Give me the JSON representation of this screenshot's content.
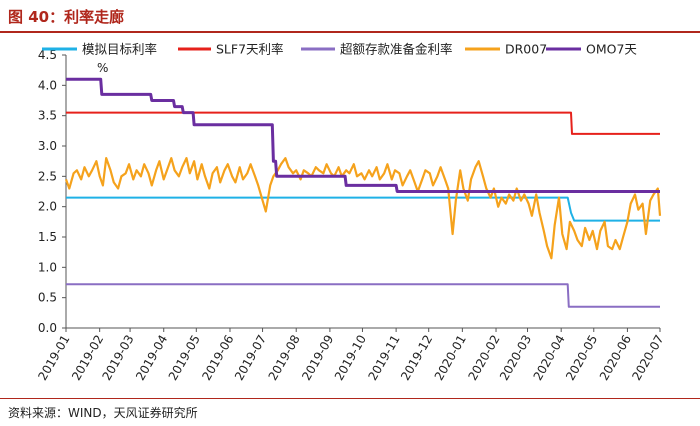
{
  "header": {
    "title": "图 40：利率走廊"
  },
  "footer": {
    "source": "资料来源：WIND，天风证券研究所"
  },
  "colors": {
    "policy_target": "#1fb1e6",
    "slf7": "#e6211b",
    "excess_reserve": "#8a6ec3",
    "dr007": "#f5a21c",
    "omo7": "#6a2ea0",
    "accent": "#b0271c"
  },
  "chart_data": {
    "type": "line",
    "unit_label": "%",
    "ylim": [
      0,
      4.5
    ],
    "yticks": [
      "0.0",
      "0.5",
      "1.0",
      "1.5",
      "2.0",
      "2.5",
      "3.0",
      "3.5",
      "4.0",
      "4.5"
    ],
    "xticks": [
      "2019-01",
      "2019-02",
      "2019-03",
      "2019-04",
      "2019-05",
      "2019-06",
      "2019-07",
      "2019-08",
      "2019-09",
      "2019-10",
      "2019-11",
      "2019-12",
      "2020-01",
      "2020-02",
      "2020-03",
      "2020-04",
      "2020-05",
      "2020-06",
      "2020-07"
    ],
    "xlim": [
      "2019-01-01",
      "2020-07-01"
    ],
    "legend_position": "top",
    "grid": false,
    "series": [
      {
        "name": "模拟目标利率",
        "key": "policy_target",
        "step": true,
        "points": [
          [
            "2019-01-01",
            2.15
          ],
          [
            "2020-04-07",
            2.15
          ],
          [
            "2020-04-10",
            1.9
          ],
          [
            "2020-04-13",
            1.77
          ],
          [
            "2020-07-01",
            1.77
          ]
        ]
      },
      {
        "name": "SLF7天利率",
        "key": "slf7",
        "step": true,
        "points": [
          [
            "2019-01-01",
            3.55
          ],
          [
            "2020-04-10",
            3.55
          ],
          [
            "2020-04-11",
            3.2
          ],
          [
            "2020-07-01",
            3.2
          ]
        ]
      },
      {
        "name": "超额存款准备金利率",
        "key": "excess_reserve",
        "step": true,
        "points": [
          [
            "2019-01-01",
            0.72
          ],
          [
            "2020-04-07",
            0.72
          ],
          [
            "2020-04-08",
            0.35
          ],
          [
            "2020-07-01",
            0.35
          ]
        ]
      },
      {
        "name": "DR007",
        "key": "dr007",
        "step": false,
        "points": [
          [
            "2019-01-01",
            2.45
          ],
          [
            "2019-01-04",
            2.3
          ],
          [
            "2019-01-08",
            2.55
          ],
          [
            "2019-01-11",
            2.6
          ],
          [
            "2019-01-15",
            2.45
          ],
          [
            "2019-01-18",
            2.65
          ],
          [
            "2019-01-22",
            2.5
          ],
          [
            "2019-01-25",
            2.6
          ],
          [
            "2019-01-29",
            2.75
          ],
          [
            "2019-02-01",
            2.5
          ],
          [
            "2019-02-04",
            2.35
          ],
          [
            "2019-02-07",
            2.8
          ],
          [
            "2019-02-11",
            2.6
          ],
          [
            "2019-02-14",
            2.4
          ],
          [
            "2019-02-18",
            2.3
          ],
          [
            "2019-02-21",
            2.5
          ],
          [
            "2019-02-25",
            2.55
          ],
          [
            "2019-02-28",
            2.7
          ],
          [
            "2019-03-04",
            2.45
          ],
          [
            "2019-03-07",
            2.6
          ],
          [
            "2019-03-11",
            2.5
          ],
          [
            "2019-03-14",
            2.7
          ],
          [
            "2019-03-18",
            2.55
          ],
          [
            "2019-03-21",
            2.35
          ],
          [
            "2019-03-25",
            2.6
          ],
          [
            "2019-03-28",
            2.75
          ],
          [
            "2019-04-01",
            2.45
          ],
          [
            "2019-04-04",
            2.6
          ],
          [
            "2019-04-08",
            2.8
          ],
          [
            "2019-04-11",
            2.6
          ],
          [
            "2019-04-15",
            2.5
          ],
          [
            "2019-04-18",
            2.65
          ],
          [
            "2019-04-22",
            2.8
          ],
          [
            "2019-04-25",
            2.55
          ],
          [
            "2019-04-29",
            2.75
          ],
          [
            "2019-05-02",
            2.45
          ],
          [
            "2019-05-06",
            2.7
          ],
          [
            "2019-05-09",
            2.5
          ],
          [
            "2019-05-13",
            2.3
          ],
          [
            "2019-05-16",
            2.55
          ],
          [
            "2019-05-20",
            2.65
          ],
          [
            "2019-05-23",
            2.4
          ],
          [
            "2019-05-27",
            2.6
          ],
          [
            "2019-05-30",
            2.7
          ],
          [
            "2019-06-03",
            2.5
          ],
          [
            "2019-06-06",
            2.4
          ],
          [
            "2019-06-10",
            2.65
          ],
          [
            "2019-06-13",
            2.45
          ],
          [
            "2019-06-17",
            2.55
          ],
          [
            "2019-06-20",
            2.7
          ],
          [
            "2019-06-24",
            2.5
          ],
          [
            "2019-06-27",
            2.35
          ],
          [
            "2019-07-01",
            2.1
          ],
          [
            "2019-07-04",
            1.92
          ],
          [
            "2019-07-08",
            2.35
          ],
          [
            "2019-07-11",
            2.5
          ],
          [
            "2019-07-15",
            2.6
          ],
          [
            "2019-07-18",
            2.7
          ],
          [
            "2019-07-22",
            2.8
          ],
          [
            "2019-07-25",
            2.65
          ],
          [
            "2019-07-29",
            2.55
          ],
          [
            "2019-08-01",
            2.6
          ],
          [
            "2019-08-05",
            2.45
          ],
          [
            "2019-08-08",
            2.6
          ],
          [
            "2019-08-12",
            2.55
          ],
          [
            "2019-08-15",
            2.5
          ],
          [
            "2019-08-19",
            2.65
          ],
          [
            "2019-08-22",
            2.6
          ],
          [
            "2019-08-26",
            2.55
          ],
          [
            "2019-08-29",
            2.7
          ],
          [
            "2019-09-02",
            2.55
          ],
          [
            "2019-09-05",
            2.5
          ],
          [
            "2019-09-09",
            2.65
          ],
          [
            "2019-09-12",
            2.5
          ],
          [
            "2019-09-16",
            2.6
          ],
          [
            "2019-09-19",
            2.55
          ],
          [
            "2019-09-23",
            2.7
          ],
          [
            "2019-09-26",
            2.5
          ],
          [
            "2019-09-30",
            2.55
          ],
          [
            "2019-10-03",
            2.45
          ],
          [
            "2019-10-07",
            2.6
          ],
          [
            "2019-10-10",
            2.5
          ],
          [
            "2019-10-14",
            2.65
          ],
          [
            "2019-10-17",
            2.45
          ],
          [
            "2019-10-21",
            2.55
          ],
          [
            "2019-10-24",
            2.7
          ],
          [
            "2019-10-28",
            2.45
          ],
          [
            "2019-10-31",
            2.6
          ],
          [
            "2019-11-04",
            2.55
          ],
          [
            "2019-11-07",
            2.35
          ],
          [
            "2019-11-11",
            2.5
          ],
          [
            "2019-11-14",
            2.6
          ],
          [
            "2019-11-18",
            2.4
          ],
          [
            "2019-11-21",
            2.25
          ],
          [
            "2019-11-25",
            2.45
          ],
          [
            "2019-11-28",
            2.6
          ],
          [
            "2019-12-02",
            2.55
          ],
          [
            "2019-12-05",
            2.35
          ],
          [
            "2019-12-09",
            2.5
          ],
          [
            "2019-12-12",
            2.65
          ],
          [
            "2019-12-16",
            2.45
          ],
          [
            "2019-12-19",
            2.3
          ],
          [
            "2019-12-23",
            1.55
          ],
          [
            "2019-12-26",
            2.1
          ],
          [
            "2019-12-30",
            2.6
          ],
          [
            "2020-01-02",
            2.3
          ],
          [
            "2020-01-06",
            2.1
          ],
          [
            "2020-01-09",
            2.45
          ],
          [
            "2020-01-13",
            2.65
          ],
          [
            "2020-01-16",
            2.75
          ],
          [
            "2020-01-20",
            2.5
          ],
          [
            "2020-01-23",
            2.3
          ],
          [
            "2020-01-27",
            2.15
          ],
          [
            "2020-01-30",
            2.3
          ],
          [
            "2020-02-03",
            2.0
          ],
          [
            "2020-02-06",
            2.15
          ],
          [
            "2020-02-10",
            2.05
          ],
          [
            "2020-02-13",
            2.2
          ],
          [
            "2020-02-17",
            2.1
          ],
          [
            "2020-02-20",
            2.3
          ],
          [
            "2020-02-24",
            2.1
          ],
          [
            "2020-02-27",
            2.2
          ],
          [
            "2020-03-02",
            2.05
          ],
          [
            "2020-03-05",
            1.85
          ],
          [
            "2020-03-09",
            2.2
          ],
          [
            "2020-03-12",
            1.9
          ],
          [
            "2020-03-16",
            1.6
          ],
          [
            "2020-03-19",
            1.35
          ],
          [
            "2020-03-23",
            1.15
          ],
          [
            "2020-03-26",
            1.7
          ],
          [
            "2020-03-30",
            2.15
          ],
          [
            "2020-04-02",
            1.55
          ],
          [
            "2020-04-06",
            1.3
          ],
          [
            "2020-04-09",
            1.75
          ],
          [
            "2020-04-13",
            1.6
          ],
          [
            "2020-04-16",
            1.45
          ],
          [
            "2020-04-20",
            1.35
          ],
          [
            "2020-04-23",
            1.65
          ],
          [
            "2020-04-27",
            1.45
          ],
          [
            "2020-04-30",
            1.6
          ],
          [
            "2020-05-04",
            1.3
          ],
          [
            "2020-05-07",
            1.6
          ],
          [
            "2020-05-11",
            1.75
          ],
          [
            "2020-05-14",
            1.35
          ],
          [
            "2020-05-18",
            1.3
          ],
          [
            "2020-05-21",
            1.45
          ],
          [
            "2020-05-25",
            1.3
          ],
          [
            "2020-05-28",
            1.5
          ],
          [
            "2020-06-01",
            1.75
          ],
          [
            "2020-06-04",
            2.05
          ],
          [
            "2020-06-08",
            2.2
          ],
          [
            "2020-06-11",
            1.95
          ],
          [
            "2020-06-15",
            2.05
          ],
          [
            "2020-06-18",
            1.55
          ],
          [
            "2020-06-22",
            2.1
          ],
          [
            "2020-06-25",
            2.2
          ],
          [
            "2020-06-29",
            2.3
          ],
          [
            "2020-07-01",
            1.85
          ]
        ]
      },
      {
        "name": "OMO7天",
        "key": "omo7",
        "step": true,
        "points": [
          [
            "2019-01-01",
            4.1
          ],
          [
            "2019-02-02",
            4.1
          ],
          [
            "2019-02-03",
            3.85
          ],
          [
            "2019-03-20",
            3.85
          ],
          [
            "2019-03-21",
            3.75
          ],
          [
            "2019-04-10",
            3.75
          ],
          [
            "2019-04-11",
            3.65
          ],
          [
            "2019-04-18",
            3.65
          ],
          [
            "2019-04-19",
            3.55
          ],
          [
            "2019-04-28",
            3.55
          ],
          [
            "2019-04-29",
            3.35
          ],
          [
            "2019-07-10",
            3.35
          ],
          [
            "2019-07-11",
            2.75
          ],
          [
            "2019-07-13",
            2.75
          ],
          [
            "2019-07-14",
            2.5
          ],
          [
            "2019-09-15",
            2.5
          ],
          [
            "2019-09-16",
            2.35
          ],
          [
            "2019-11-01",
            2.35
          ],
          [
            "2019-11-02",
            2.25
          ],
          [
            "2020-07-01",
            2.25
          ]
        ]
      }
    ]
  }
}
